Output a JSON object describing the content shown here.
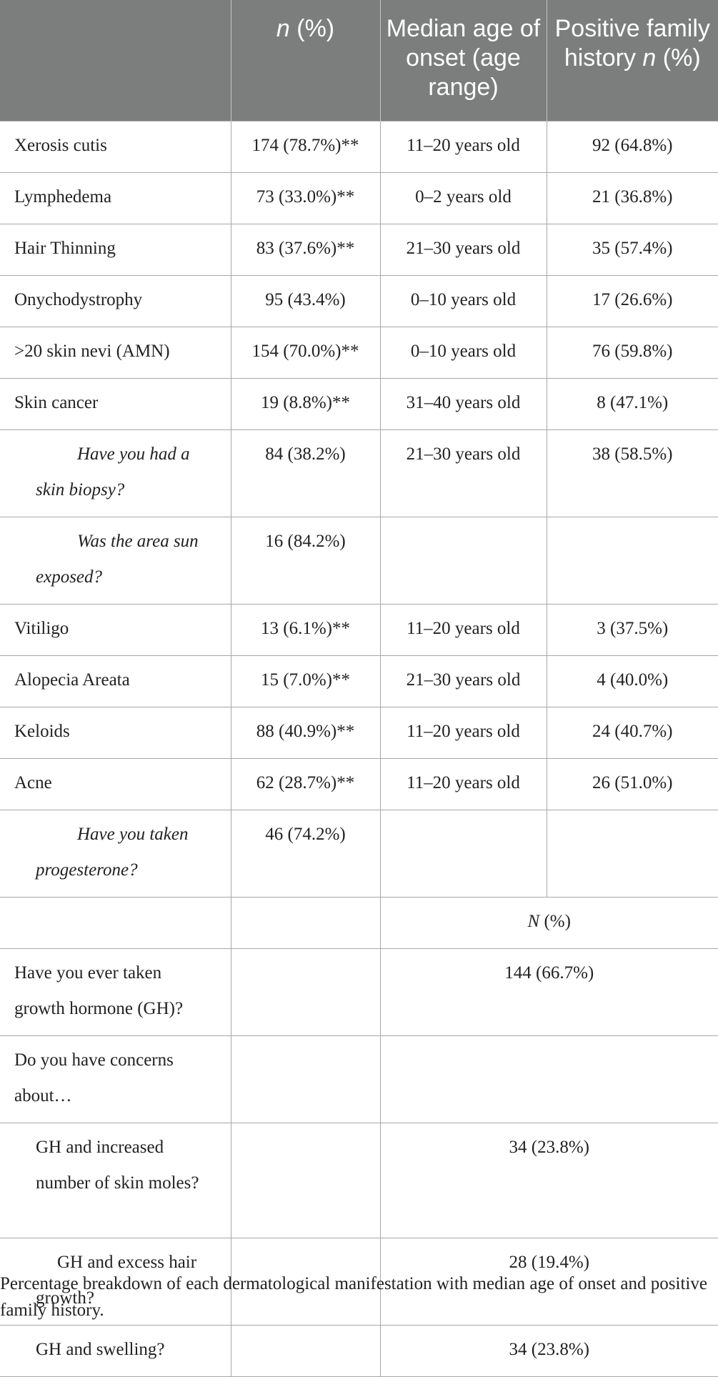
{
  "header": {
    "col1": "",
    "col2_n": "n",
    "col2_rest": " (%)",
    "col3": "Median age of onset (age range)",
    "col4_text": "Positive family history ",
    "col4_n": "n",
    "col4_rest": " (%)"
  },
  "rows": [
    {
      "label": "Xerosis cutis",
      "n_pct": "174 (78.7%)**",
      "onset": "11–20 years old",
      "family": "92 (64.8%)"
    },
    {
      "label": "Lymphedema",
      "n_pct": "73 (33.0%)**",
      "onset": "0–2 years old",
      "family": "21 (36.8%)"
    },
    {
      "label": "Hair Thinning",
      "n_pct": "83 (37.6%)**",
      "onset": "21–30 years old",
      "family": "35 (57.4%)"
    },
    {
      "label": "Onychodystrophy",
      "n_pct": "95 (43.4%)",
      "onset": "0–10 years old",
      "family": "17 (26.6%)"
    },
    {
      "label": ">20 skin nevi (AMN)",
      "n_pct": "154 (70.0%)**",
      "onset": "0–10 years old",
      "family": "76 (59.8%)"
    },
    {
      "label": "Skin cancer",
      "n_pct": "19 (8.8%)**",
      "onset": "31–40 years old",
      "family": "8 (47.1%)"
    },
    {
      "label": "Have you had a skin biopsy?",
      "n_pct": "84 (38.2%)",
      "onset": "21–30 years old",
      "family": "38 (58.5%)"
    },
    {
      "label": "Was the area sun exposed?",
      "n_pct": "16 (84.2%)",
      "onset": "",
      "family": ""
    },
    {
      "label": "Vitiligo",
      "n_pct": "13 (6.1%)**",
      "onset": "11–20 years old",
      "family": "3 (37.5%)"
    },
    {
      "label": "Alopecia Areata",
      "n_pct": "15 (7.0%)**",
      "onset": "21–30 years old",
      "family": "4 (40.0%)"
    },
    {
      "label": "Keloids",
      "n_pct": "88 (40.9%)**",
      "onset": "11–20 years old",
      "family": "24 (40.7%)"
    },
    {
      "label": "Acne",
      "n_pct": "62 (28.7%)**",
      "onset": "11–20 years old",
      "family": "26 (51.0%)"
    },
    {
      "label": "Have you taken progesterone?",
      "n_pct": "46 (74.2%)",
      "onset": "",
      "family": ""
    }
  ],
  "subheader": {
    "n": "N",
    "rest": " (%)"
  },
  "gh_rows": [
    {
      "label": "Have you ever taken growth hormone (GH)?",
      "value": "144 (66.7%)"
    },
    {
      "label": "Do you have concerns about…",
      "value": ""
    },
    {
      "label": "GH and increased number of skin moles?",
      "value": "34 (23.8%)"
    },
    {
      "label": "GH and excess hair growth?",
      "value": "28 (19.4%)"
    },
    {
      "label": "GH and swelling?",
      "value": "34 (23.8%)"
    }
  ],
  "caption": "Percentage breakdown of each dermatological manifestation with median age of onset and positive family history."
}
